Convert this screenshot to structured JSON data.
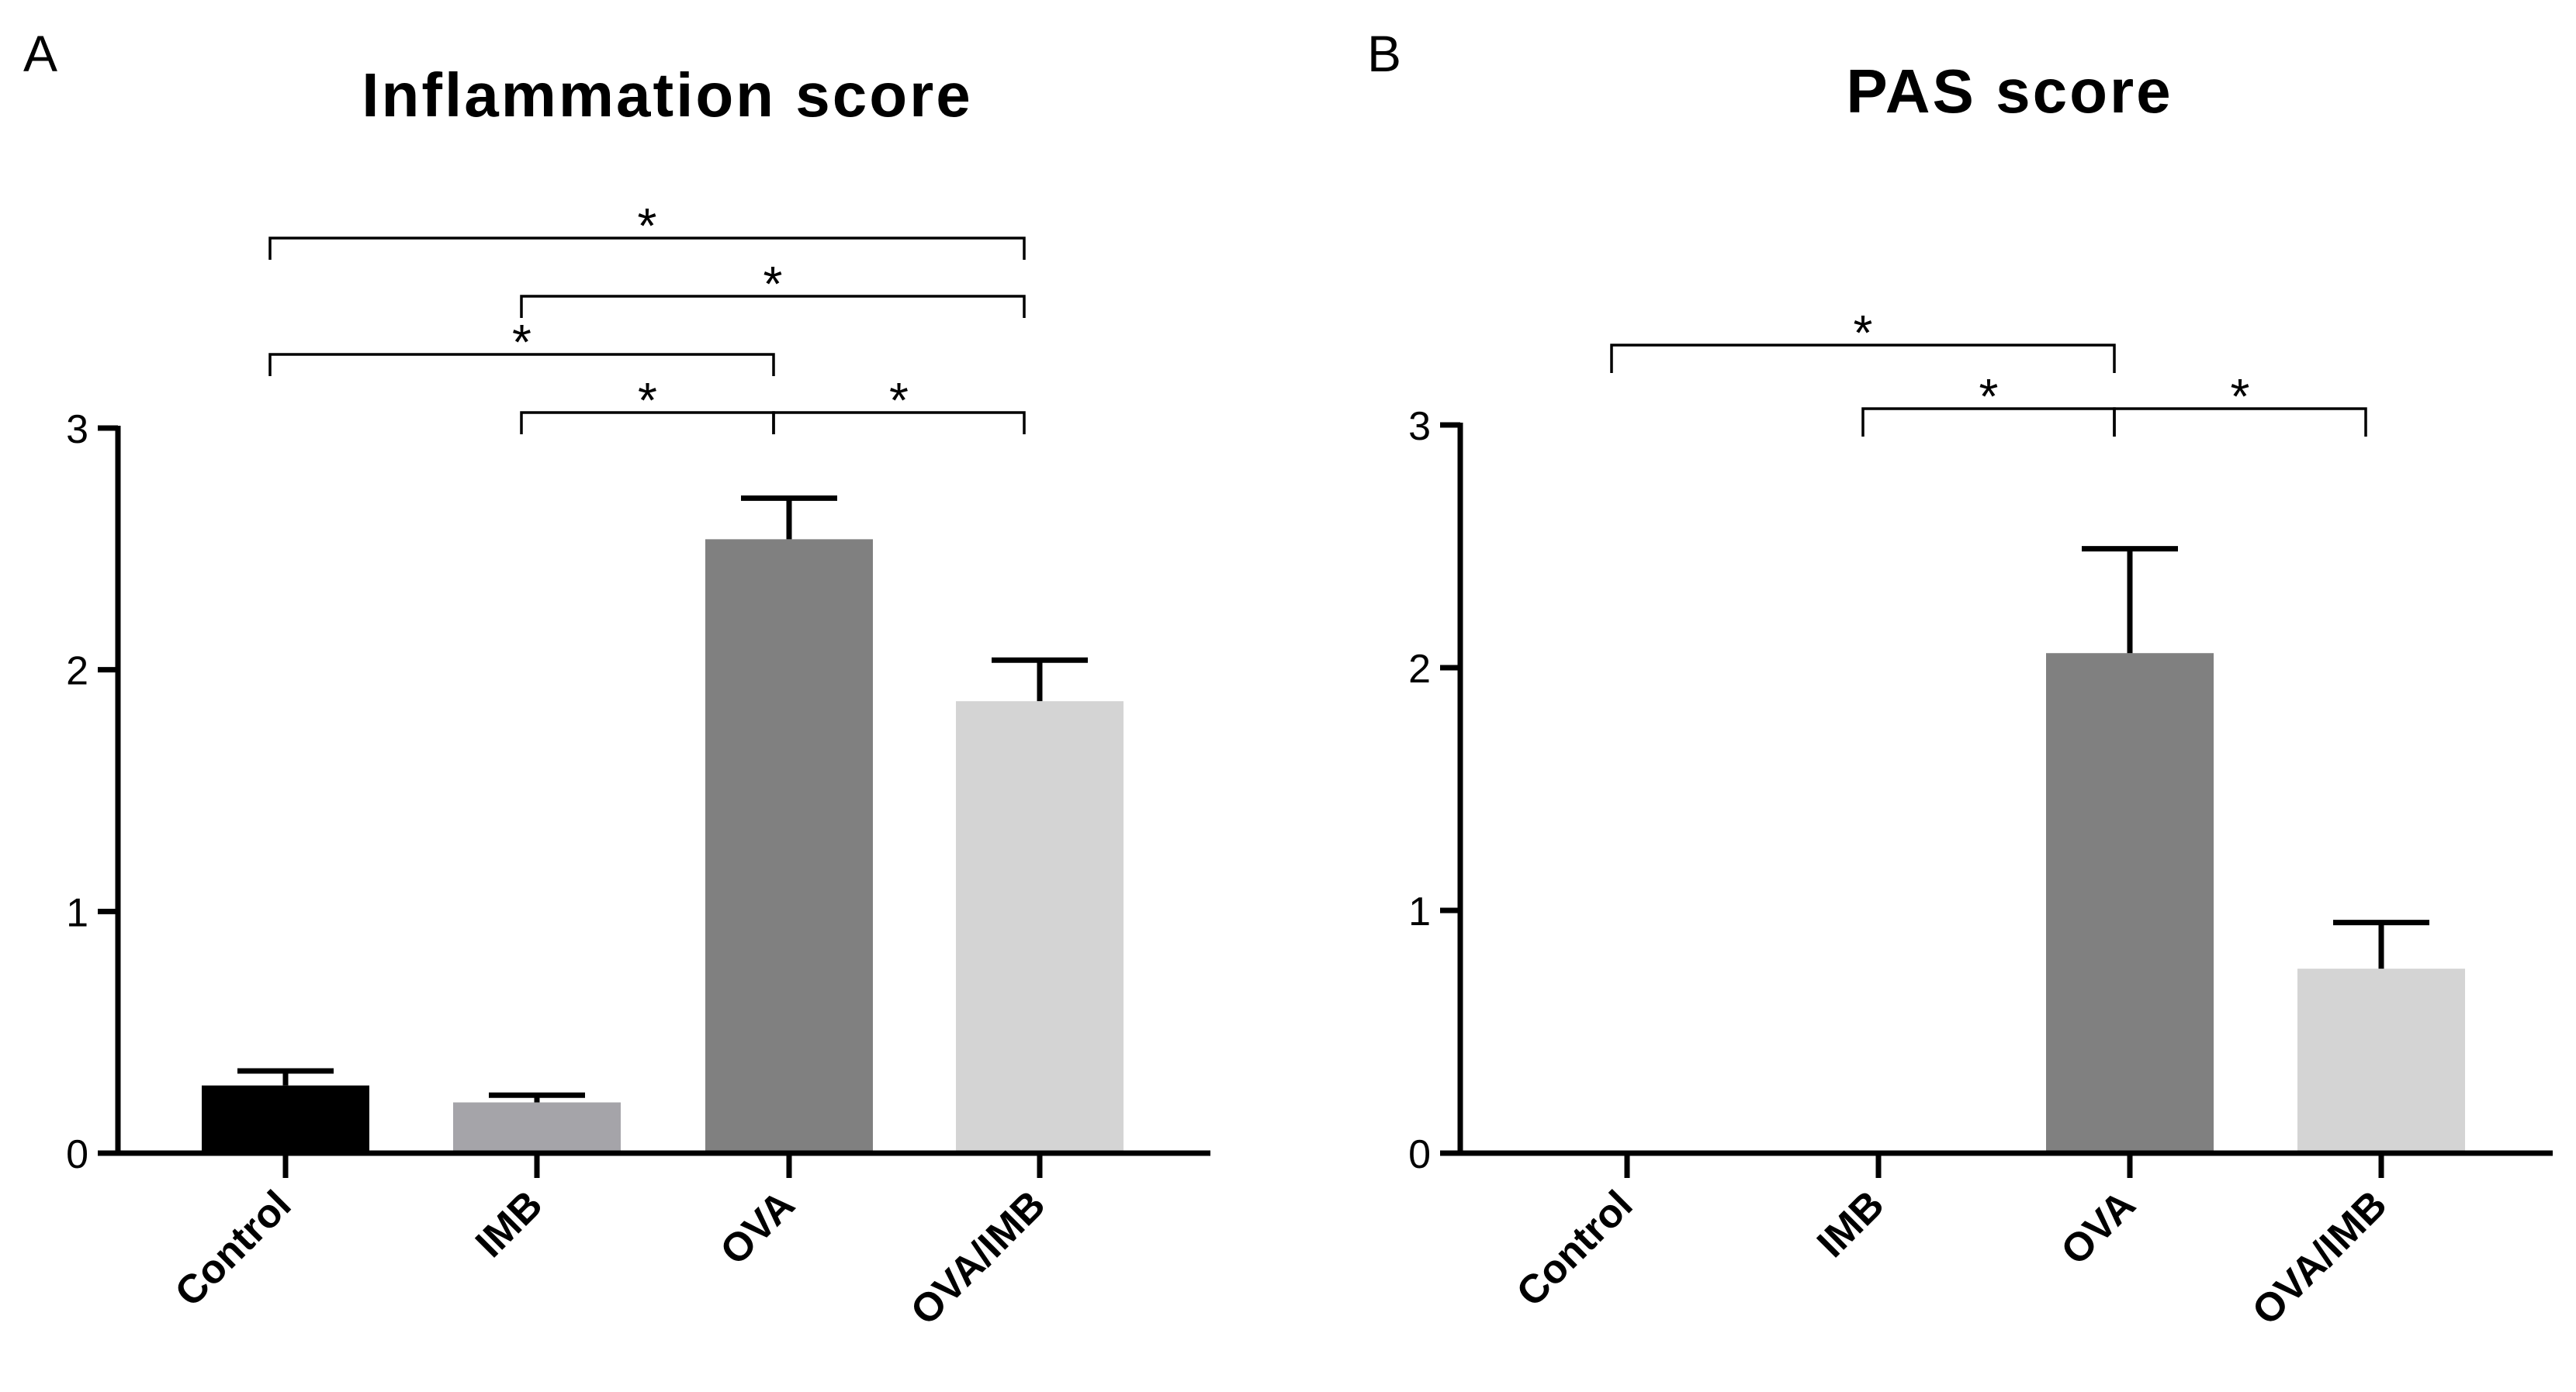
{
  "chart_data": [
    {
      "type": "bar",
      "panel": "A",
      "title": "Inflammation score",
      "xlabel": "",
      "ylabel": "",
      "ylim": [
        0,
        3
      ],
      "yticks": [
        "0",
        "1",
        "2",
        "3"
      ],
      "categories": [
        "Control",
        "IMB",
        "OVA",
        "OVA/IMB"
      ],
      "values": [
        0.28,
        0.21,
        2.54,
        1.87
      ],
      "errors": [
        0.06,
        0.03,
        0.17,
        0.17
      ],
      "colors": [
        "#000000",
        "#a5a4a9",
        "#808080",
        "#d4d4d4"
      ],
      "significance": [
        {
          "from": 0,
          "to": 3,
          "level": 0,
          "label": "*"
        },
        {
          "from": 1,
          "to": 3,
          "level": 1,
          "label": "*"
        },
        {
          "from": 0,
          "to": 2,
          "level": 2,
          "label": "*"
        },
        {
          "from": 1,
          "to": 2,
          "level": 3,
          "label": "*"
        },
        {
          "from": 2,
          "to": 3,
          "level": 3,
          "label": "*"
        }
      ]
    },
    {
      "type": "bar",
      "panel": "B",
      "title": "PAS score",
      "xlabel": "",
      "ylabel": "",
      "ylim": [
        0,
        3
      ],
      "yticks": [
        "0",
        "1",
        "2",
        "3"
      ],
      "categories": [
        "Control",
        "IMB",
        "OVA",
        "OVA/IMB"
      ],
      "values": [
        0,
        0,
        2.06,
        0.76
      ],
      "errors": [
        0,
        0,
        0.43,
        0.19
      ],
      "colors": [
        "#000000",
        "#a5a4a9",
        "#808080",
        "#d4d4d4"
      ],
      "significance": [
        {
          "from": 0,
          "to": 2,
          "level": 0,
          "label": "*"
        },
        {
          "from": 1,
          "to": 2,
          "level": 1,
          "label": "*"
        },
        {
          "from": 2,
          "to": 3,
          "level": 1,
          "label": "*"
        }
      ]
    }
  ]
}
